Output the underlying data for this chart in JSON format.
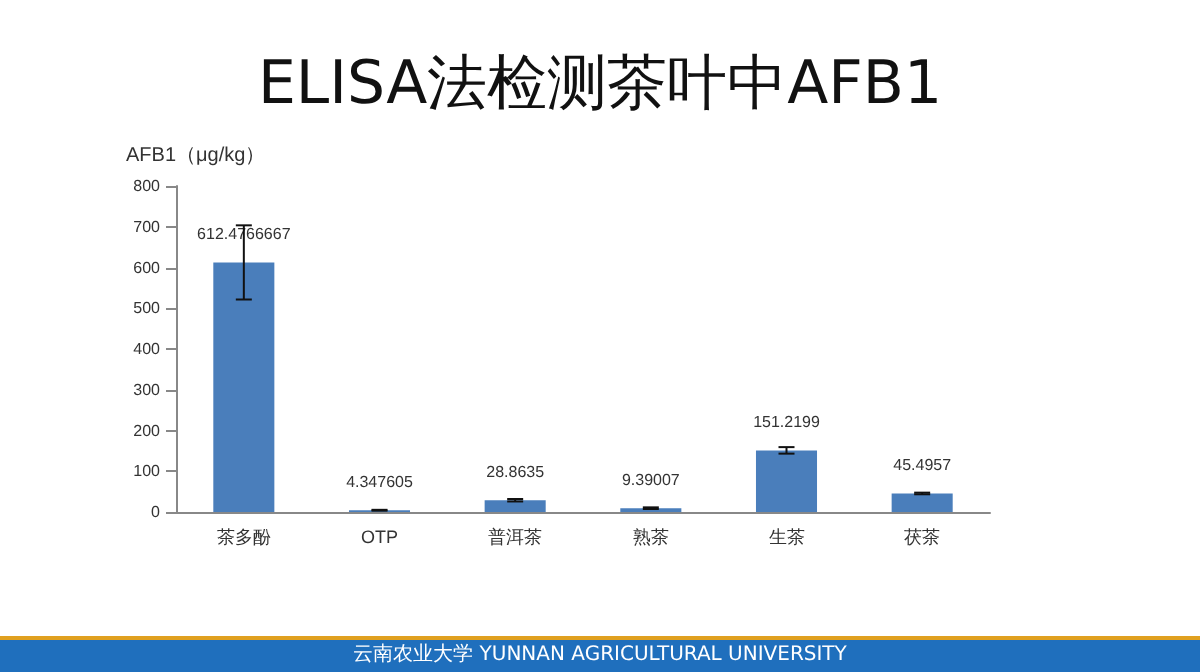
{
  "chart_data": {
    "type": "bar",
    "title": "ELISA法检测茶叶中AFB1",
    "ylabel": "AFB1（μg/kg）",
    "categories": [
      "茶多酚",
      "OTP",
      "普洱茶",
      "熟茶",
      "生茶",
      "茯茶"
    ],
    "values": [
      612.4766667,
      4.347605,
      28.8635,
      9.39007,
      151.2199,
      45.4957
    ],
    "errors": [
      91,
      1,
      3,
      2,
      8,
      2
    ],
    "color": "#4a7ebb",
    "data_labels": true,
    "ylim": [
      0,
      800
    ],
    "yticks": [
      0,
      100,
      200,
      300,
      400,
      500,
      600,
      700,
      800
    ],
    "grid": false,
    "annotations": [
      "云南农业大学  YUNNAN AGRICULTURAL UNIVERSITY"
    ]
  }
}
